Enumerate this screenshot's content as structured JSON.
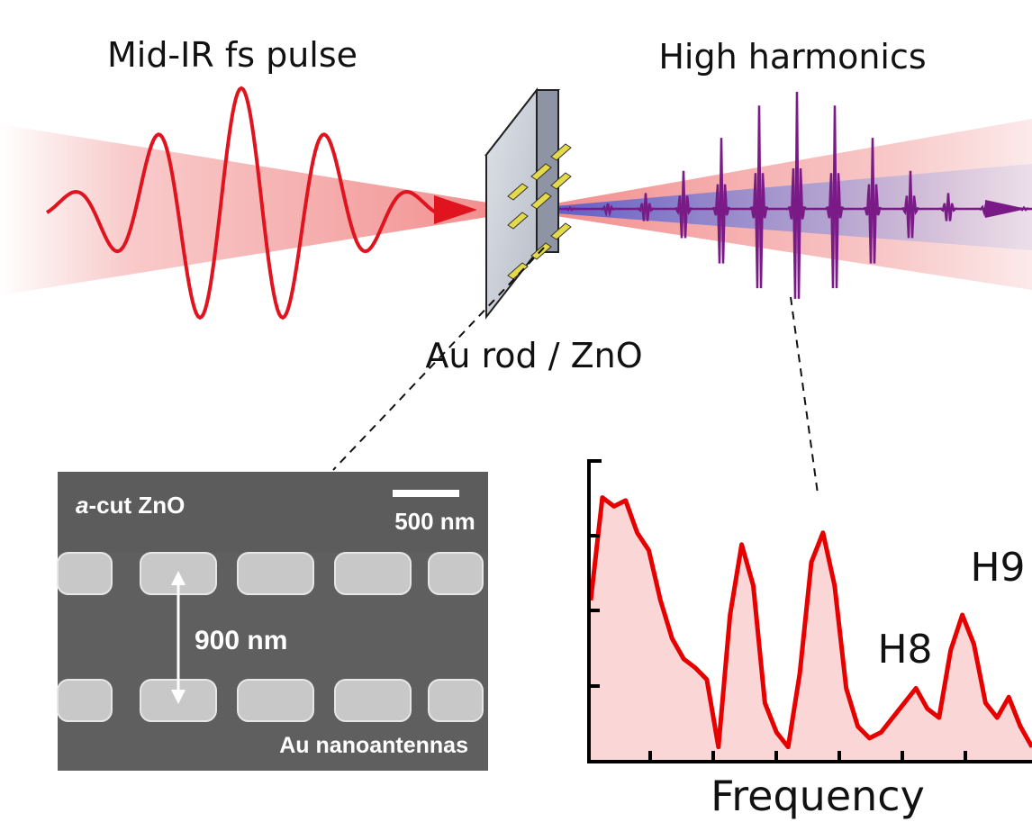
{
  "labels": {
    "input_pulse": "Mid-IR fs pulse",
    "output": "High harmonics",
    "sample": "Au rod / ZnO"
  },
  "sem_image": {
    "substrate_prefix": "a",
    "substrate_suffix": "-cut ZnO",
    "scale_bar": "500 nm",
    "spacing": "900 nm",
    "caption": "Au nanoantennas"
  },
  "chart_data": {
    "type": "line",
    "xlabel": "Frequency",
    "ylabel": "",
    "annotations": [
      {
        "text": "H8"
      },
      {
        "text": "H9"
      }
    ],
    "series_color": "#e60000",
    "fill_color": "#fbd6d6",
    "values": [
      0.55,
      0.9,
      0.87,
      0.89,
      0.78,
      0.72,
      0.55,
      0.42,
      0.35,
      0.32,
      0.28,
      0.05,
      0.5,
      0.74,
      0.6,
      0.2,
      0.1,
      0.05,
      0.3,
      0.68,
      0.78,
      0.6,
      0.25,
      0.12,
      0.08,
      0.1,
      0.15,
      0.2,
      0.25,
      0.18,
      0.15,
      0.38,
      0.5,
      0.4,
      0.2,
      0.15,
      0.22,
      0.12,
      0.05
    ]
  },
  "colors": {
    "pump": "#e0141e",
    "pump_beam": "#f4a3a3",
    "harmonic": "#7a1a86",
    "harmonic_beam": "#8f8fd6",
    "nanorod": "#e3d94a",
    "slab": "#c9cdd6"
  }
}
